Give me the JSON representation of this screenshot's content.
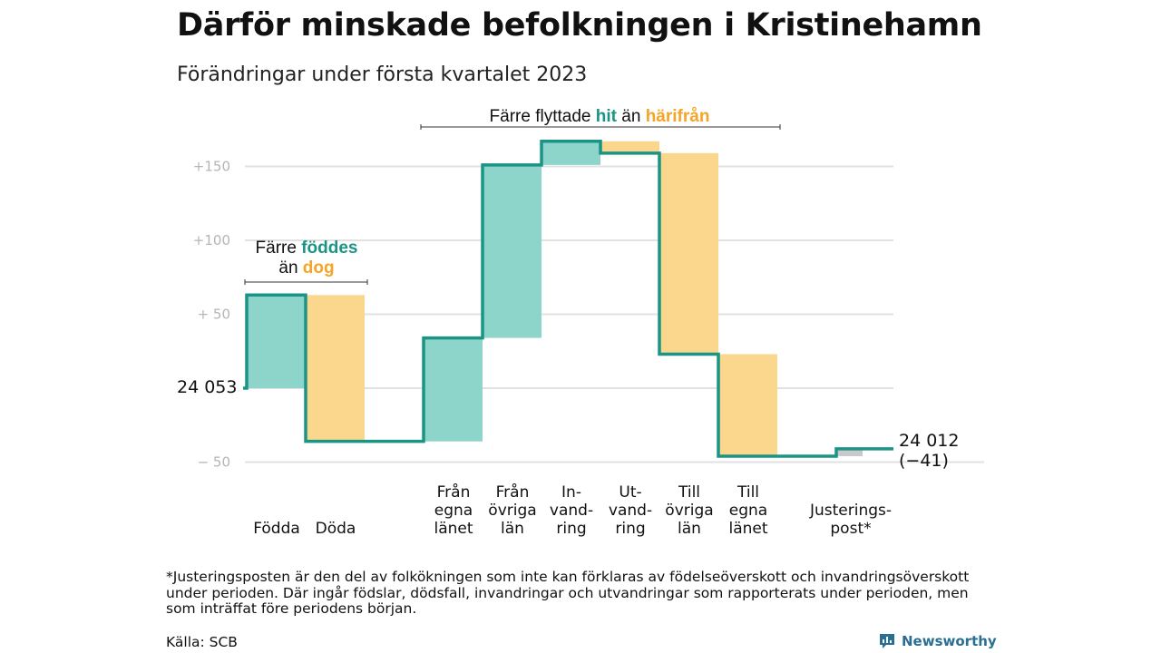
{
  "header": {
    "title": "Därför minskade befolkningen i Kristinehamn",
    "subtitle": "Förändringar under första kvartalet 2023"
  },
  "annotations": {
    "migration": {
      "prefix": "Färre flyttade ",
      "hit": "hit",
      "middle": " än ",
      "harifran": "härifrån"
    },
    "births": {
      "prefix": "Färre ",
      "foddes": "föddes",
      "line2_prefix": "än ",
      "dog": "dog"
    }
  },
  "labels": {
    "start": "24 053",
    "end_value": "24 012",
    "end_change": "(−41)"
  },
  "footnote": "*Justeringsposten är den del av folkökningen som inte kan förklaras av födelseöverskott och invandringsöverskott under perioden. Där ingår födslar, dödsfall, invandringar och utvandringar som rapporterats under perioden, men som inträffat före periodens början.",
  "source": "Källa: SCB",
  "brand": "Newsworthy",
  "colors": {
    "inflow": "#8dd5cb",
    "outflow": "#fad78d",
    "line": "#1a9485",
    "adjustment": "#c9c9c9",
    "orange_text": "#f4a528",
    "teal_text": "#1a9485",
    "grid": "#e1e1e1"
  },
  "chart_data": {
    "type": "waterfall",
    "start_value": 24053,
    "end_value": 24012,
    "yticks": [
      {
        "value": 150,
        "label": "+150"
      },
      {
        "value": 100,
        "label": "+100"
      },
      {
        "value": 50,
        "label": "+ 50"
      },
      {
        "value": -50,
        "label": "− 50"
      }
    ],
    "ylim": [
      -52,
      167
    ],
    "steps": [
      {
        "label": [
          "Födda"
        ],
        "change": 63,
        "kind": "in"
      },
      {
        "label": [
          "Döda"
        ],
        "change": -99,
        "kind": "out"
      },
      {
        "label": [
          "Från",
          "egna",
          "länet"
        ],
        "change": 70,
        "kind": "in"
      },
      {
        "label": [
          "Från",
          "övriga",
          "län"
        ],
        "change": 117,
        "kind": "in"
      },
      {
        "label": [
          "In-",
          "vand-",
          "ring"
        ],
        "change": 16,
        "kind": "in"
      },
      {
        "label": [
          "Ut-",
          "vand-",
          "ring"
        ],
        "change": -8,
        "kind": "out"
      },
      {
        "label": [
          "Till",
          "övriga",
          "län"
        ],
        "change": -136,
        "kind": "out"
      },
      {
        "label": [
          "Till",
          "egna",
          "länet"
        ],
        "change": -69,
        "kind": "out"
      },
      {
        "label": [
          "Justerings-",
          "post*"
        ],
        "change": 5,
        "kind": "adjustment"
      }
    ]
  }
}
